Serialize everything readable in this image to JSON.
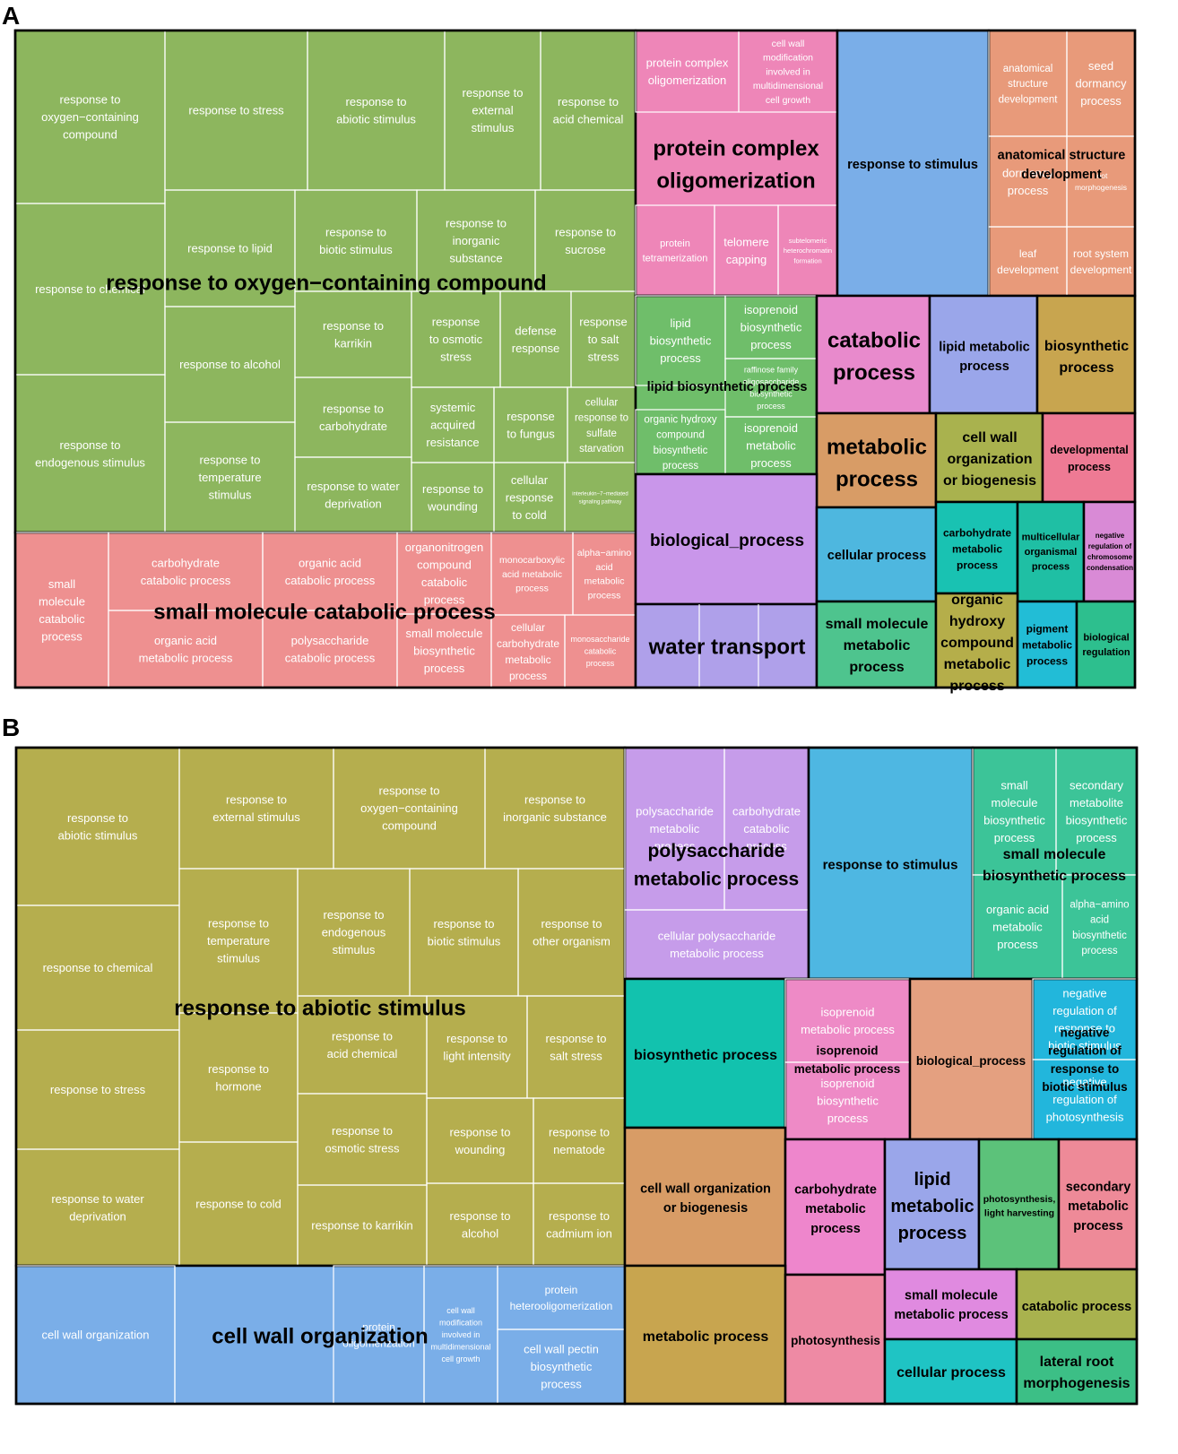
{
  "panels": [
    {
      "label": "A",
      "clusters": [
        {
          "name": "response to oxygen−containing compound",
          "color": "#8DB65E",
          "cells": [
            "response to\noxygen−containing\ncompound",
            "response to stress",
            "response to\nabiotic stimulus",
            "response to\nexternal\nstimulus",
            "response to\nacid chemical",
            "response to chemical",
            "response to lipid",
            "response to\nbiotic stimulus",
            "response to\ninorganic\nsubstance",
            "response to\nsucrose",
            "response to alcohol",
            "response to\nkarrikin",
            "response\nto osmotic\nstress",
            "defense\nresponse",
            "response\nto salt\nstress",
            "response to\ncarbohydrate",
            "systemic\nacquired\nresistance",
            "response\nto fungus",
            "cellular\nresponse to\nsulfate\nstarvation",
            "response to\nendogenous stimulus",
            "response to\ntemperature\nstimulus",
            "response to water\ndeprivation",
            "response to\nwounding",
            "cellular\nresponse\nto cold",
            "interleukin−7−mediated\nsignaling pathway"
          ]
        },
        {
          "name": "small molecule catabolic process",
          "color": "#EE9090",
          "cells": [
            "small\nmolecule\ncatabolic\nprocess",
            "carbohydrate\ncatabolic process",
            "organic acid\ncatabolic process",
            "organonitrogen\ncompound\ncatabolic\nprocess",
            "monocarboxylic\nacid metabolic\nprocess",
            "alpha−amino\nacid\nmetabolic\nprocess",
            "organic acid\nmetabolic process",
            "polysaccharide\ncatabolic process",
            "small molecule\nbiosynthetic\nprocess",
            "cellular\ncarbohydrate\nmetabolic\nprocess",
            "monosaccharide\ncatabolic\nprocess"
          ]
        },
        {
          "name": "protein complex\noligomerization",
          "color": "#EE86B8",
          "cells": [
            "protein complex\noligomerization",
            "cell wall\nmodification\ninvolved in\nmultidimensional\ncell growth",
            "protein\ntetramerization",
            "telomere\ncapping",
            "subtelomeric\nheterochromatin\nformation"
          ]
        },
        {
          "name": "response to stimulus",
          "color": "#7AAEE8",
          "cells": []
        },
        {
          "name": "anatomical structure\ndevelopment",
          "color": "#E89A7A",
          "cells": [
            "anatomical\nstructure\ndevelopment",
            "seed\ndormancy\nprocess",
            "dormancy\nprocess",
            "root\nmorphogenesis",
            "leaf\ndevelopment",
            "root system\ndevelopment"
          ]
        },
        {
          "name": "lipid biosynthetic process",
          "color": "#6FBE6A",
          "cells": [
            "lipid\nbiosynthetic\nprocess",
            "isoprenoid\nbiosynthetic\nprocess",
            "raffinose family\noligosaccharide\nbiosynthetic\nprocess",
            "organic hydroxy\ncompound\nbiosynthetic\nprocess",
            "isoprenoid\nmetabolic\nprocess"
          ]
        },
        {
          "name": "catabolic\nprocess",
          "color": "#E88ACC",
          "cells": []
        },
        {
          "name": "lipid metabolic\nprocess",
          "color": "#9AA6EA",
          "cells": []
        },
        {
          "name": "biosynthetic\nprocess",
          "color": "#C8A54F",
          "cells": []
        },
        {
          "name": "metabolic\nprocess",
          "color": "#D89C66",
          "cells": []
        },
        {
          "name": "cell wall\norganization\nor biogenesis",
          "color": "#A9B24E",
          "cells": []
        },
        {
          "name": "developmental\nprocess",
          "color": "#EE7A94",
          "cells": []
        },
        {
          "name": "biological_process",
          "color": "#C996EA",
          "cells": []
        },
        {
          "name": "cellular process",
          "color": "#4EB7DF",
          "cells": []
        },
        {
          "name": "carbohydrate\nmetabolic\nprocess",
          "color": "#19C2B2",
          "cells": []
        },
        {
          "name": "multicellular\norganismal\nprocess",
          "color": "#1FBFA4",
          "cells": []
        },
        {
          "name": "negative\nregulation of\nchromosome\ncondensation",
          "color": "#D98AD6",
          "cells": []
        },
        {
          "name": "water transport",
          "color": "#AFA0EA",
          "cells": []
        },
        {
          "name": "small molecule\nmetabolic\nprocess",
          "color": "#4EC48E",
          "cells": []
        },
        {
          "name": "organic\nhydroxy\ncompound\nmetabolic\nprocess",
          "color": "#B5AE4A",
          "cells": []
        },
        {
          "name": "pigment\nmetabolic\nprocess",
          "color": "#22BDD6",
          "cells": []
        },
        {
          "name": "biological\nregulation",
          "color": "#2DBF8E",
          "cells": []
        }
      ]
    },
    {
      "label": "B",
      "clusters": [
        {
          "name": "response to abiotic stimulus",
          "color": "#B5AE4E",
          "cells": [
            "response to\nabiotic stimulus",
            "response to\nexternal stimulus",
            "response to\noxygen−containing\ncompound",
            "response to\ninorganic substance",
            "response to chemical",
            "response to\ntemperature\nstimulus",
            "response to\nendogenous\nstimulus",
            "response to\nbiotic stimulus",
            "response to\nother organism",
            "response to stress",
            "response to\nhormone",
            "response to\nacid chemical",
            "response to\nlight intensity",
            "response to\nsalt stress",
            "response to\nosmotic stress",
            "response to\nwounding",
            "response to\nnematode",
            "response to water\ndeprivation",
            "response to cold",
            "response to karrikin",
            "response to\nalcohol",
            "response to\ncadmium ion"
          ]
        },
        {
          "name": "cell wall organization",
          "color": "#7AAEE8",
          "cells": [
            "cell wall organization",
            "protein\noligomerization",
            "cell wall\nmodification\ninvolved in\nmultidimensional\ncell growth",
            "protein\nheterooligomerization",
            "cell wall pectin\nbiosynthetic\nprocess"
          ]
        },
        {
          "name": "polysaccharide\nmetabolic process",
          "color": "#C69CEA",
          "cells": [
            "polysaccharide\nmetabolic\nprocess",
            "carbohydrate\ncatabolic\nprocess",
            "cellular polysaccharide\nmetabolic process"
          ]
        },
        {
          "name": "response to stimulus",
          "color": "#4EB7E2",
          "cells": []
        },
        {
          "name": "small molecule\nbiosynthetic process",
          "color": "#3CC498",
          "cells": [
            "small\nmolecule\nbiosynthetic\nprocess",
            "secondary\nmetabolite\nbiosynthetic\nprocess",
            "organic acid\nmetabolic\nprocess",
            "alpha−amino\nacid\nbiosynthetic\nprocess"
          ]
        },
        {
          "name": "biosynthetic process",
          "color": "#12C2AE",
          "cells": []
        },
        {
          "name": "isoprenoid\nmetabolic process",
          "color": "#EE8AC6",
          "cells": [
            "isoprenoid\nmetabolic process",
            "isoprenoid\nbiosynthetic\nprocess"
          ]
        },
        {
          "name": "biological_process",
          "color": "#E4A080",
          "cells": []
        },
        {
          "name": "negative\nregulation of\nresponse to\nbiotic stimulus",
          "color": "#22B6DC",
          "cells": [
            "negative\nregulation of\nresponse to\nbiotic stimulus",
            "negative\nregulation of\nphotosynthesis"
          ]
        },
        {
          "name": "cell wall organization\nor biogenesis",
          "color": "#D89C66",
          "cells": []
        },
        {
          "name": "carbohydrate\nmetabolic\nprocess",
          "color": "#EE86CC",
          "cells": []
        },
        {
          "name": "lipid\nmetabolic\nprocess",
          "color": "#9AA6EA",
          "cells": []
        },
        {
          "name": "photosynthesis,\nlight harvesting",
          "color": "#5CC27A",
          "cells": []
        },
        {
          "name": "secondary\nmetabolic\nprocess",
          "color": "#EE8A98",
          "cells": []
        },
        {
          "name": "metabolic process",
          "color": "#C8A54F",
          "cells": []
        },
        {
          "name": "photosynthesis",
          "color": "#EE8AA4",
          "cells": []
        },
        {
          "name": "small molecule\nmetabolic process",
          "color": "#E08AE0",
          "cells": []
        },
        {
          "name": "catabolic process",
          "color": "#A9B24E",
          "cells": []
        },
        {
          "name": "cellular process",
          "color": "#1FC4C4",
          "cells": []
        },
        {
          "name": "lateral root\nmorphogenesis",
          "color": "#3CBF86",
          "cells": []
        }
      ]
    }
  ]
}
